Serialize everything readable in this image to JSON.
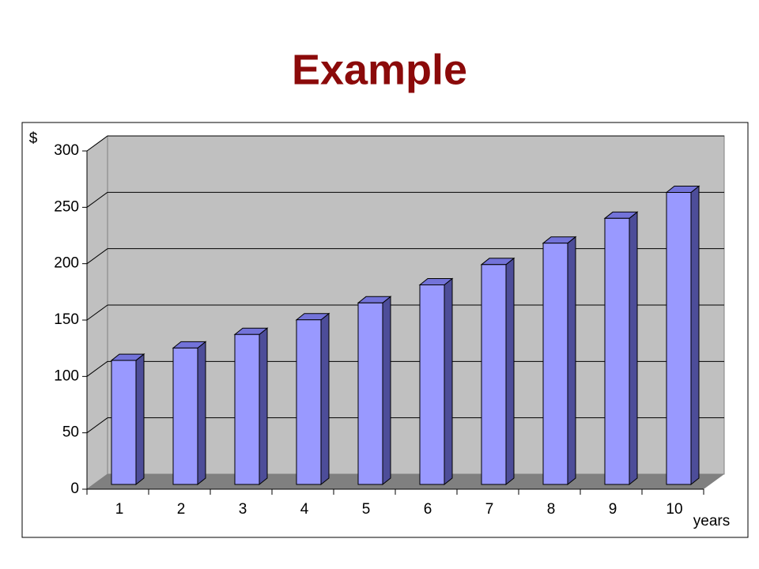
{
  "chart_data": {
    "type": "bar3d",
    "title": "Example",
    "y_label": "$",
    "x_label": "years",
    "categories": [
      "1",
      "2",
      "3",
      "4",
      "5",
      "6",
      "7",
      "8",
      "9",
      "10"
    ],
    "values": [
      110,
      121,
      133,
      146,
      161,
      177,
      195,
      214,
      236,
      259
    ],
    "color": "#9999ff",
    "ylim": [
      0,
      300
    ],
    "yticks": [
      0,
      50,
      100,
      150,
      200,
      250,
      300
    ],
    "grid": true
  }
}
